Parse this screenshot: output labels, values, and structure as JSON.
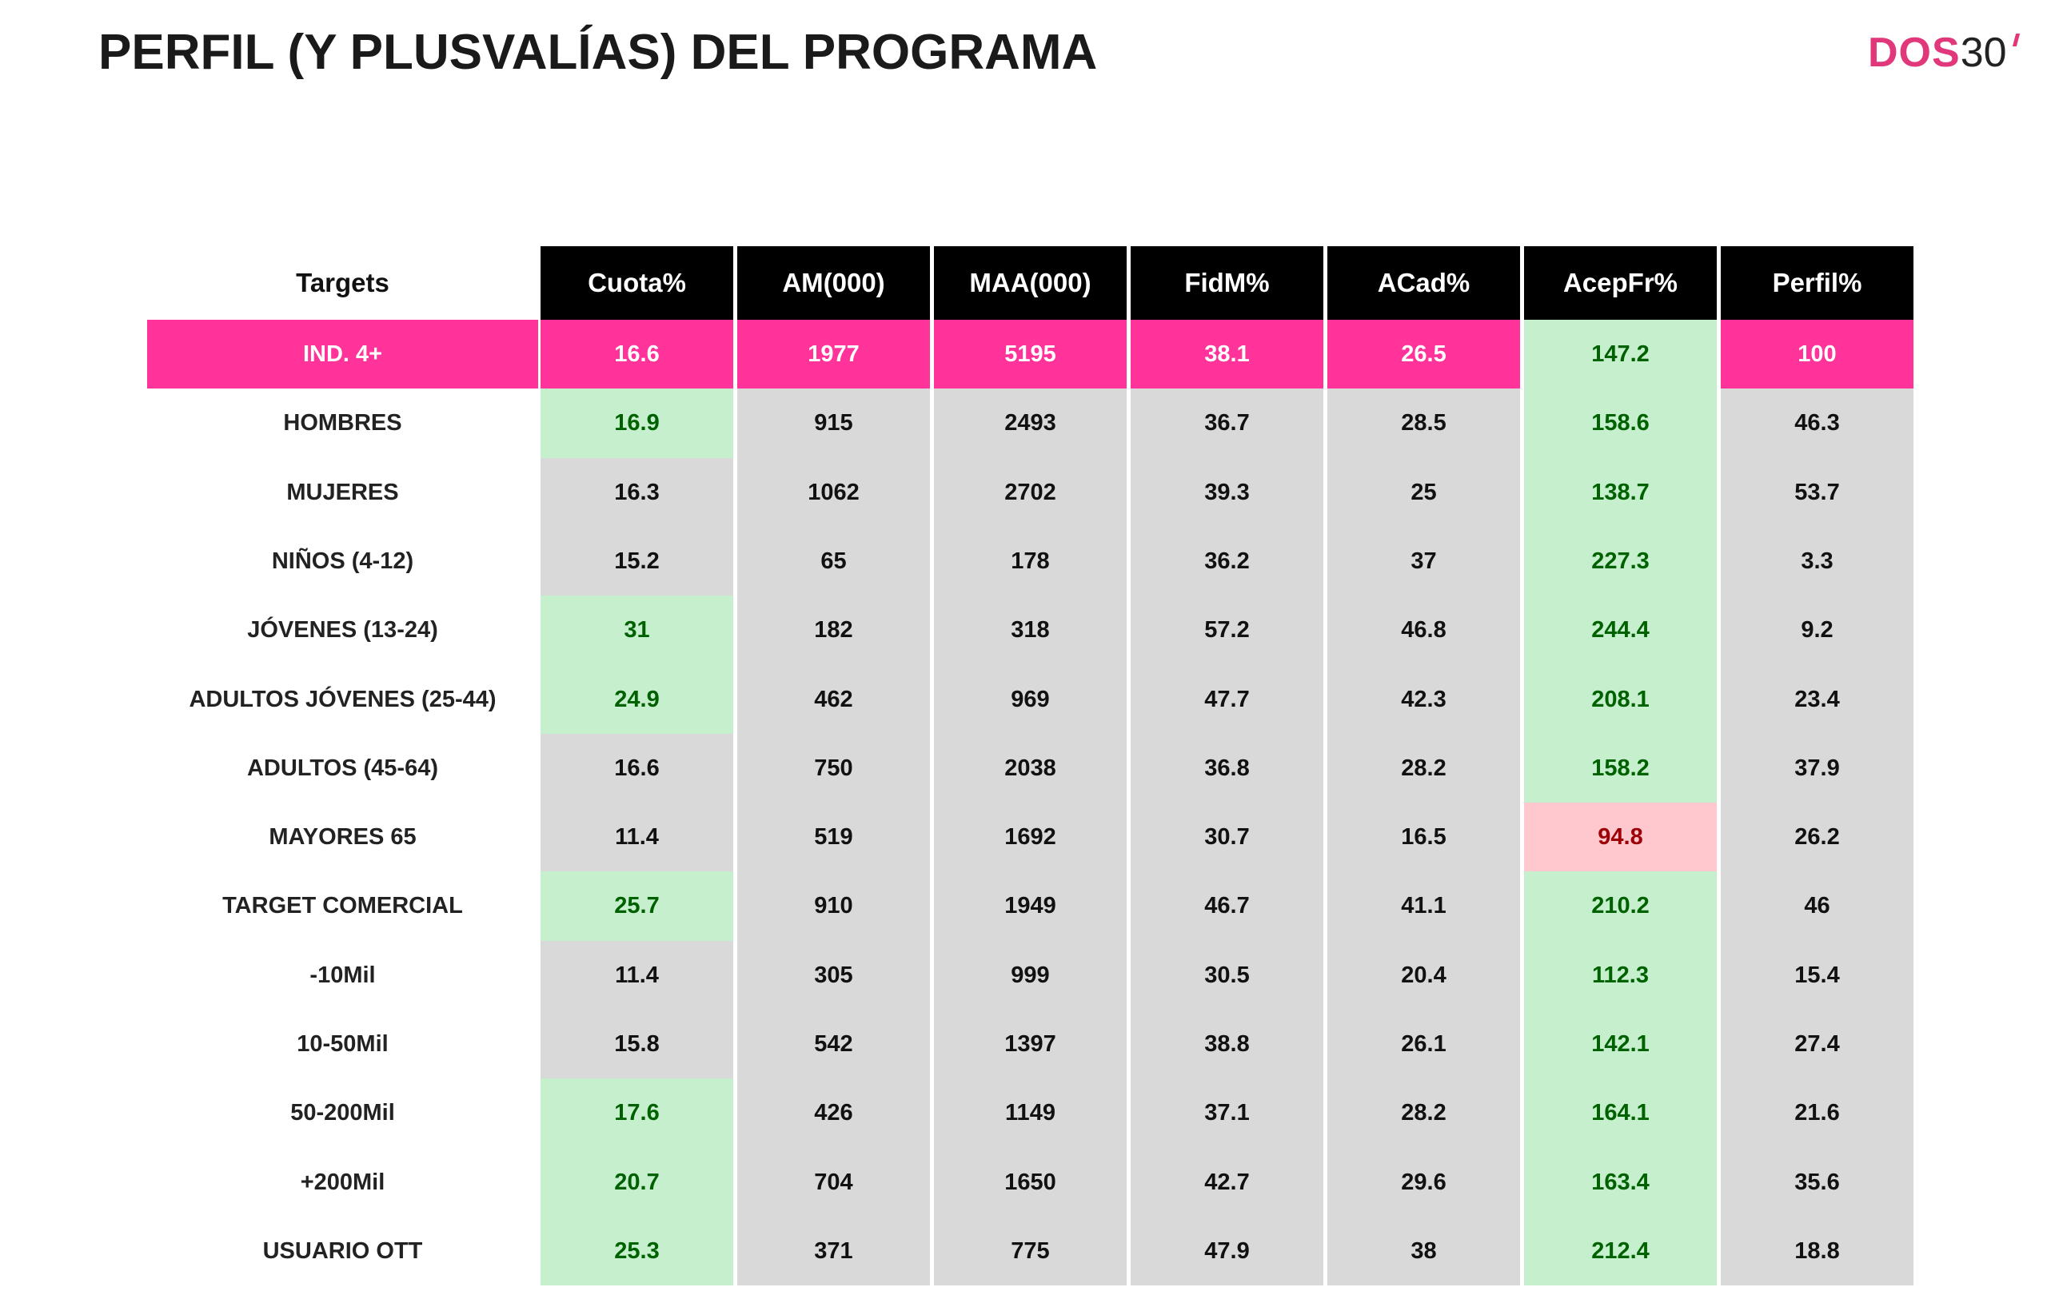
{
  "header": {
    "title": "PERFIL (Y PLUSVALÍAS) DEL PROGRAMA",
    "logo": {
      "brand": "DOS",
      "suffix": "30"
    }
  },
  "table": {
    "header": [
      "Targets",
      "Cuota%",
      "AM(000)",
      "MAA(000)",
      "FidM%",
      "ACad%",
      "AcepFr%",
      "Perfil%"
    ],
    "rows": [
      [
        "IND. 4+",
        16.6,
        1977,
        5195,
        38.1,
        26.5,
        147.2,
        100
      ],
      [
        "HOMBRES",
        16.9,
        915,
        2493,
        36.7,
        28.5,
        158.6,
        46.3
      ],
      [
        "MUJERES",
        16.3,
        1062,
        2702,
        39.3,
        25,
        138.7,
        53.7
      ],
      [
        "NIÑOS (4-12)",
        15.2,
        65,
        178,
        36.2,
        37,
        227.3,
        3.3
      ],
      [
        "JÓVENES (13-24)",
        31,
        182,
        318,
        57.2,
        46.8,
        244.4,
        9.2
      ],
      [
        "ADULTOS JÓVENES (25-44)",
        24.9,
        462,
        969,
        47.7,
        42.3,
        208.1,
        23.4
      ],
      [
        "ADULTOS (45-64)",
        16.6,
        750,
        2038,
        36.8,
        28.2,
        158.2,
        37.9
      ],
      [
        "MAYORES 65",
        11.4,
        519,
        1692,
        30.7,
        16.5,
        94.8,
        26.2
      ],
      [
        "TARGET COMERCIAL",
        25.7,
        910,
        1949,
        46.7,
        41.1,
        210.2,
        46
      ],
      [
        "-10Mil",
        11.4,
        305,
        999,
        30.5,
        20.4,
        112.3,
        15.4
      ],
      [
        "10-50Mil",
        15.8,
        542,
        1397,
        38.8,
        26.1,
        142.1,
        27.4
      ],
      [
        "50-200Mil",
        17.6,
        426,
        1149,
        37.1,
        28.2,
        164.1,
        21.6
      ],
      [
        "+200Mil",
        20.7,
        704,
        1650,
        42.7,
        29.6,
        163.4,
        35.6
      ],
      [
        "USUARIO OTT",
        25.3,
        371,
        775,
        47.9,
        38,
        212.4,
        18.8
      ]
    ]
  }
}
